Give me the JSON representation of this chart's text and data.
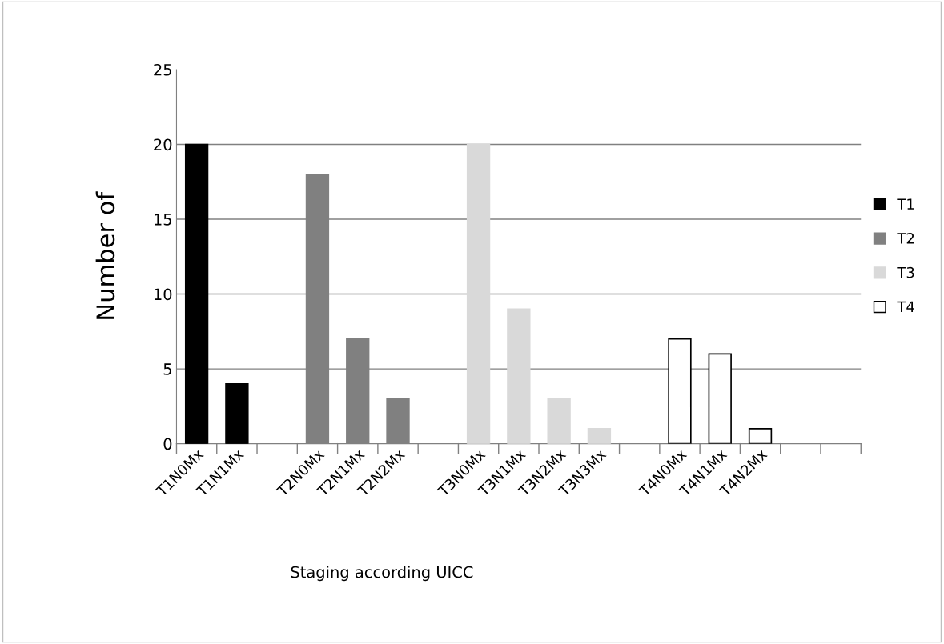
{
  "chart_data": {
    "type": "bar",
    "xlabel": "Staging according UICC",
    "ylabel": "Number of",
    "categories": [
      "T1N0Mx",
      "T1N1Mx",
      null,
      "T2N0Mx",
      "T2N1Mx",
      "T2N2Mx",
      null,
      "T3N0Mx",
      "T3N1Mx",
      "T3N2Mx",
      "T3N3Mx",
      null,
      "T4N0Mx",
      "T4N1Mx",
      "T4N2Mx",
      null,
      null
    ],
    "series": [
      {
        "name": "T1",
        "color": "#000000",
        "values": [
          20,
          4,
          null,
          null,
          null,
          null,
          null,
          null,
          null,
          null,
          null,
          null,
          null,
          null,
          null,
          null,
          null
        ]
      },
      {
        "name": "T2",
        "color": "#808080",
        "values": [
          null,
          null,
          null,
          18,
          7,
          3,
          null,
          null,
          null,
          null,
          null,
          null,
          null,
          null,
          null,
          null,
          null
        ]
      },
      {
        "name": "T3",
        "color": "#d9d9d9",
        "values": [
          null,
          null,
          null,
          null,
          null,
          null,
          null,
          20,
          9,
          3,
          1,
          null,
          null,
          null,
          null,
          null,
          null
        ]
      },
      {
        "name": "T4",
        "color": "#ffffff",
        "values": [
          null,
          null,
          null,
          null,
          null,
          null,
          null,
          null,
          null,
          null,
          null,
          null,
          7,
          6,
          1,
          null,
          null
        ]
      }
    ],
    "ylim": [
      0,
      25
    ],
    "yticks": [
      0,
      5,
      10,
      15,
      20,
      25
    ],
    "grid": "y",
    "legend": "right"
  }
}
